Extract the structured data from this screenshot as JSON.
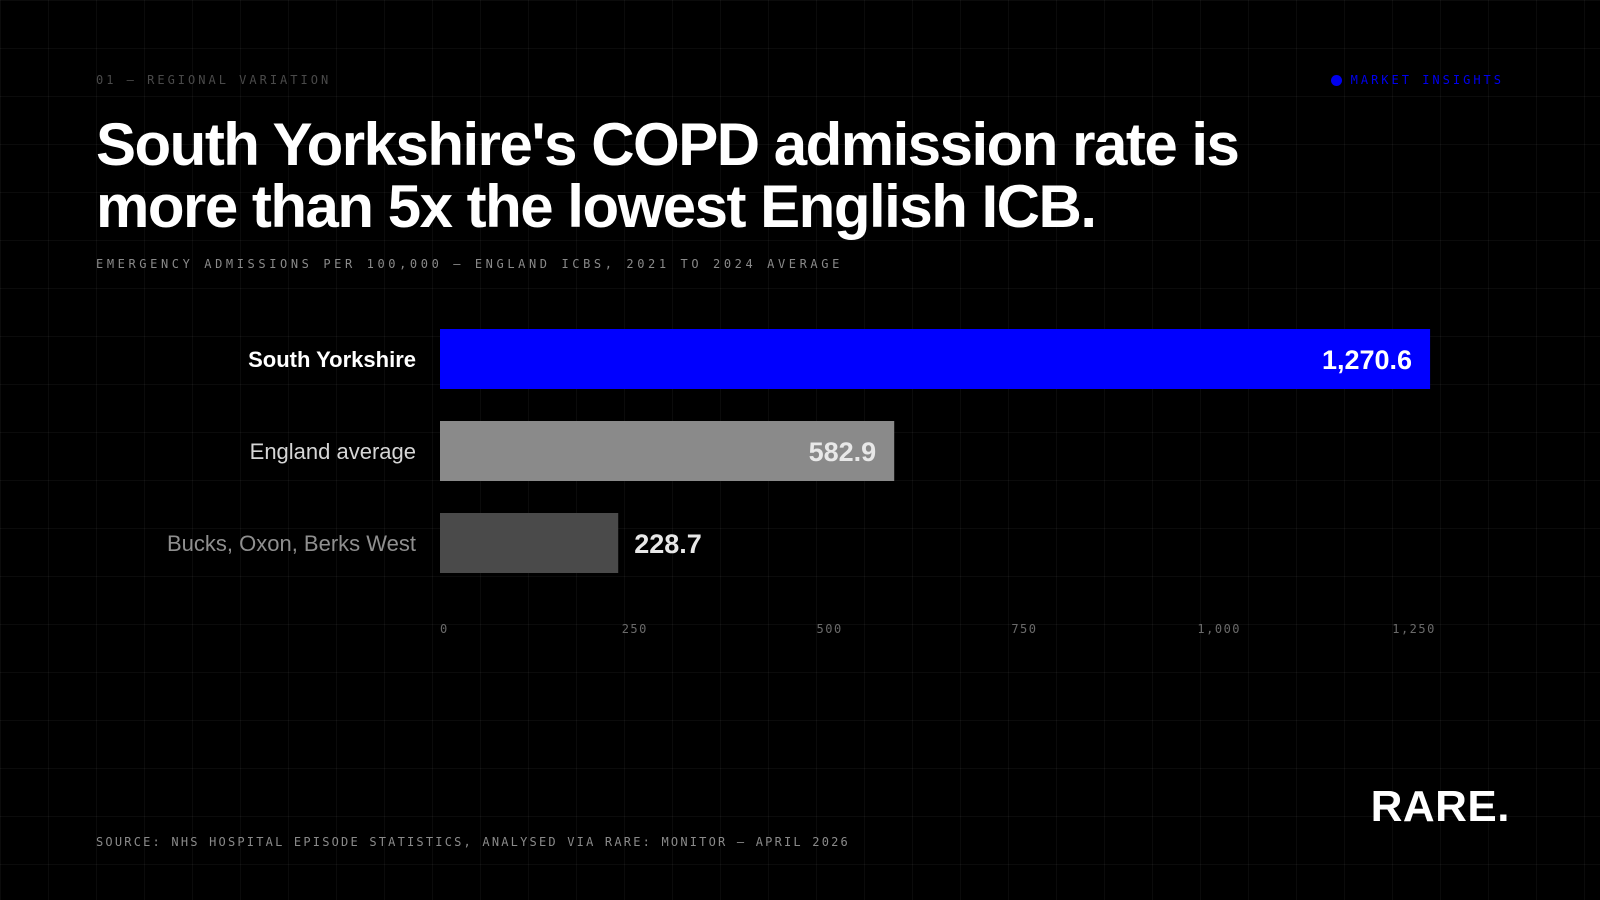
{
  "header": {
    "eyebrow": "01 — REGIONAL VARIATION",
    "tag": "MARKET INSIGHTS",
    "headline_line1": "South Yorkshire's COPD admission rate is",
    "headline_line2": "more than 5x the lowest English ICB.",
    "subtitle": "EMERGENCY ADMISSIONS PER 100,000 — ENGLAND ICBS, 2021 TO 2024 AVERAGE"
  },
  "chart_data": {
    "type": "bar",
    "orientation": "horizontal",
    "categories": [
      "South Yorkshire",
      "England average",
      "Bucks, Oxon, Berks West"
    ],
    "values": [
      1270.6,
      582.9,
      228.7
    ],
    "value_labels": [
      "1,270.6",
      "582.9",
      "228.7"
    ],
    "bar_colors": [
      "#0000ff",
      "#8a8a8a",
      "#4a4a4a"
    ],
    "label_colors": [
      "#ffffff",
      "#d6d6d6",
      "#8f8f8f"
    ],
    "title": "",
    "xlabel": "",
    "ylabel": "",
    "xlim": [
      0,
      1300
    ],
    "x_ticks": [
      0,
      250,
      500,
      750,
      1000,
      1250
    ],
    "x_tick_labels": [
      "0",
      "250",
      "500",
      "750",
      "1,000",
      "1,250"
    ],
    "grid": true
  },
  "footer": {
    "source": "SOURCE: NHS HOSPITAL EPISODE STATISTICS, ANALYSED VIA RARE: MONITOR — APRIL 2026",
    "logo": "RARE."
  },
  "colors": {
    "accent": "#0000ff",
    "background": "#000000"
  }
}
